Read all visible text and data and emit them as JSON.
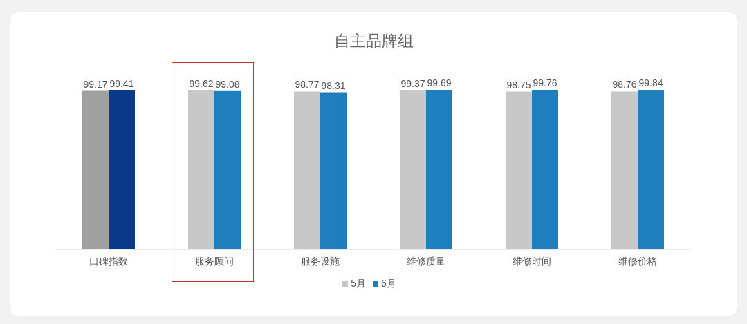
{
  "chart_data": {
    "type": "bar",
    "title": "自主品牌组",
    "categories": [
      "口碑指数",
      "服务顾问",
      "服务设施",
      "维修质量",
      "维修时间",
      "维修价格"
    ],
    "series": [
      {
        "name": "5月",
        "color": "#c8c8c8",
        "colors": [
          "#a0a0a0",
          "#c8c8c8",
          "#c8c8c8",
          "#c8c8c8",
          "#c8c8c8",
          "#c8c8c8"
        ],
        "values": [
          99.17,
          99.62,
          98.77,
          99.37,
          98.75,
          98.76
        ]
      },
      {
        "name": "6月",
        "color": "#1f7fbd",
        "colors": [
          "#0b3887",
          "#1f7fbd",
          "#1f7fbd",
          "#1f7fbd",
          "#1f7fbd",
          "#1f7fbd"
        ],
        "values": [
          99.41,
          99.08,
          98.31,
          99.69,
          99.76,
          99.84
        ]
      }
    ],
    "data_labels": true,
    "legend": "bottom",
    "grid": false
  }
}
